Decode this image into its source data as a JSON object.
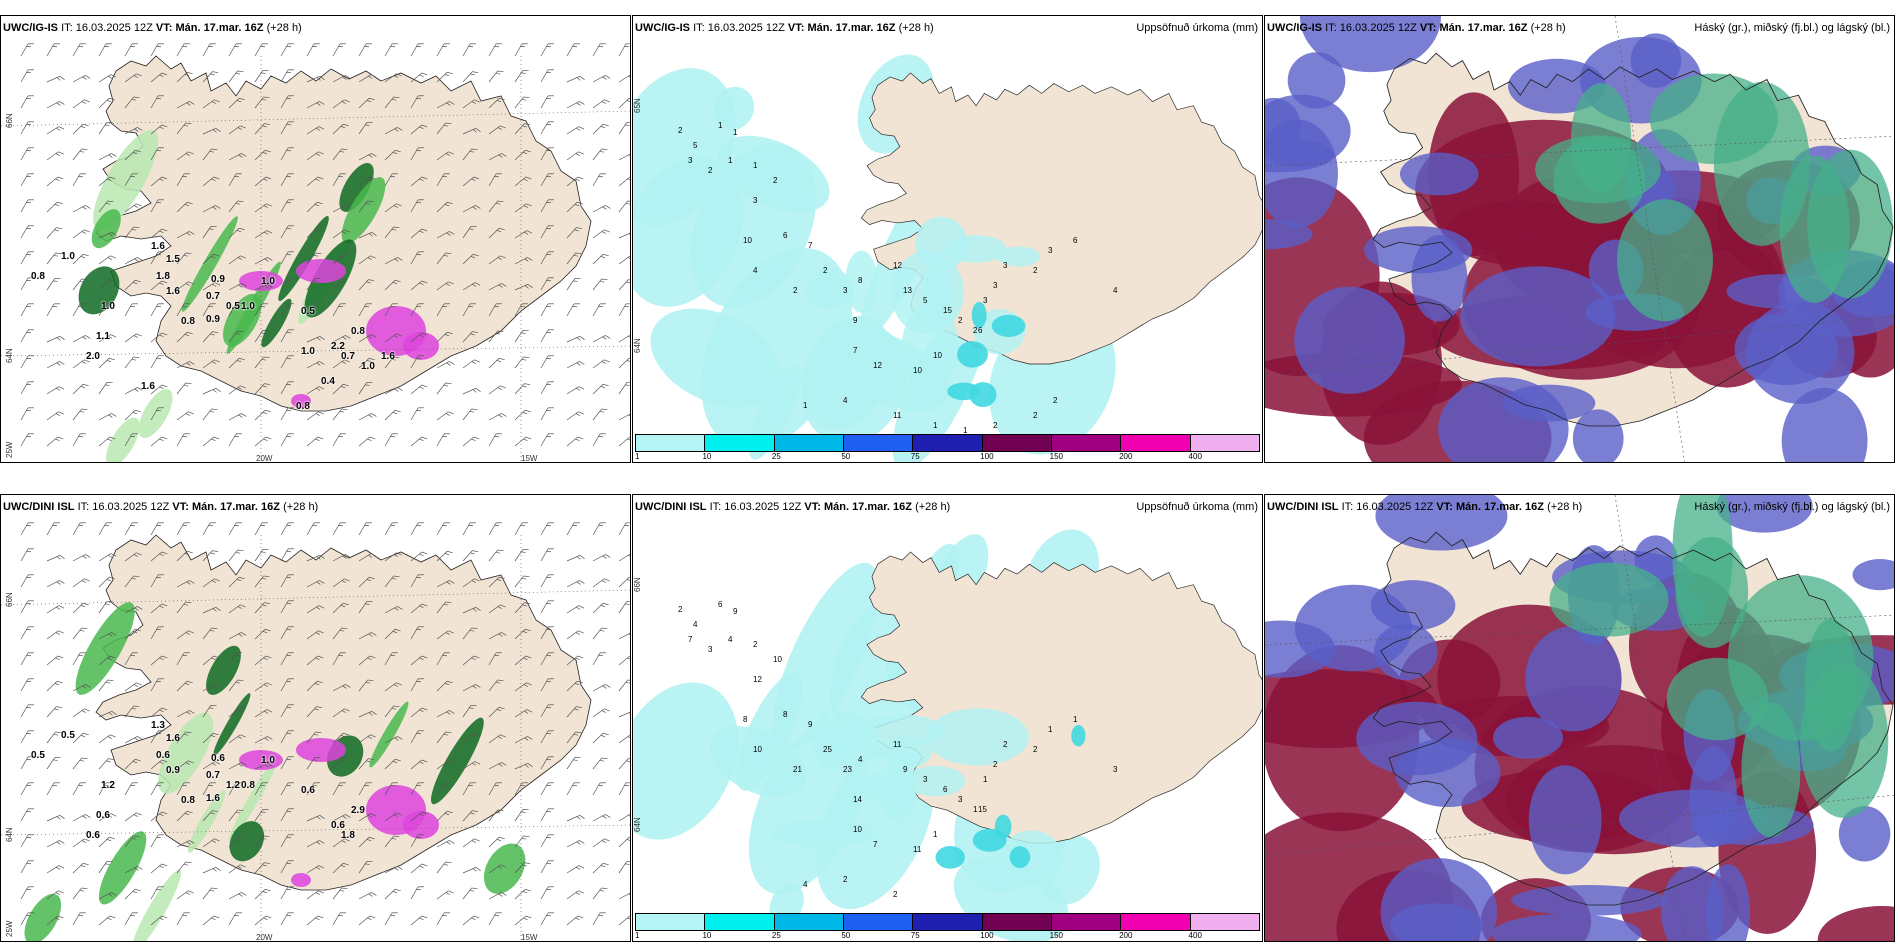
{
  "colors": {
    "land": "#f2e4d4",
    "green_light": "#b8e8b0",
    "green_mid": "#49b84e",
    "green_dark": "#0e6a22",
    "magenta": "#dd44dd",
    "cyan_light": "#b2f2f2",
    "cyan_mid": "#40d8e0",
    "blue_low": "#5a5fc8",
    "maroon_high": "#8a1238",
    "teal_mid": "#45b08a"
  },
  "precip_colorbar": {
    "labels": [
      "1",
      "10",
      "25",
      "50",
      "75",
      "100",
      "150",
      "200",
      "400"
    ],
    "colors": [
      "#b4f4f4",
      "#00f0f0",
      "#00b8e8",
      "#2060f0",
      "#2020b0",
      "#700050",
      "#a00080",
      "#f000b0",
      "#f0b0f0"
    ]
  },
  "panels": [
    {
      "id": "top-left",
      "model": "UWC/IG-IS",
      "it_label": "IT:",
      "it_value": "16.03.2025 12Z",
      "vt_label": "VT:",
      "vt_value": "Mán. 17.mar. 16Z",
      "lead": "(+28 h)",
      "right_title": "",
      "lat_labels": [
        "66N",
        "64N",
        "25W"
      ],
      "lon_labels": [
        "20W",
        "15W"
      ],
      "values": [
        "0.8",
        "1.0",
        "1.6",
        "1.5",
        "1.8",
        "1.6",
        "1.0",
        "1.1",
        "2.0",
        "0.9",
        "0.7",
        "0.5",
        "0.8",
        "0.9",
        "1.0",
        "1.0",
        "0.5",
        "2.2",
        "0.8",
        "0.7",
        "1.0",
        "1.6",
        "1.0",
        "0.4",
        "1.6",
        "0.8"
      ]
    },
    {
      "id": "top-mid",
      "model": "UWC/IG-IS",
      "it_label": "IT:",
      "it_value": "16.03.2025 12Z",
      "vt_label": "VT:",
      "vt_value": "Mán. 17.mar. 16Z",
      "lead": "(+28 h)",
      "right_title": "Uppsöfnuð úrkoma (mm)",
      "lat_labels": [
        "65N",
        "64N"
      ],
      "lon_labels": [],
      "values": [
        "2",
        "5",
        "1",
        "1",
        "3",
        "2",
        "1",
        "1",
        "2",
        "3",
        "10",
        "6",
        "7",
        "4",
        "2",
        "2",
        "3",
        "8",
        "12",
        "13",
        "9",
        "5",
        "15",
        "2",
        "6",
        "7",
        "12",
        "10",
        "10",
        "2",
        "3",
        "3",
        "3",
        "2",
        "3",
        "6",
        "4",
        "1",
        "4",
        "11",
        "1",
        "1",
        "2",
        "2",
        "2"
      ]
    },
    {
      "id": "top-right",
      "model": "UWC/IG-IS",
      "it_label": "IT:",
      "it_value": "16.03.2025 12Z",
      "vt_label": "VT:",
      "vt_value": "Mán. 17.mar. 16Z",
      "lead": "(+28 h)",
      "right_title": "Háský (gr.), miðský (fj.bl.) og lágský (bl.)",
      "lat_labels": [],
      "lon_labels": [],
      "values": []
    },
    {
      "id": "bottom-left",
      "model": "UWC/DINI ISL",
      "it_label": "IT:",
      "it_value": "16.03.2025 12Z",
      "vt_label": "VT:",
      "vt_value": "Mán. 17.mar. 16Z",
      "lead": "(+28 h)",
      "right_title": "",
      "lat_labels": [
        "66N",
        "64N",
        "25W"
      ],
      "lon_labels": [
        "20W",
        "15W"
      ],
      "values": [
        "0.5",
        "0.5",
        "1.3",
        "1.6",
        "0.6",
        "0.9",
        "1.2",
        "0.6",
        "0.6",
        "0.6",
        "0.7",
        "1.2",
        "0.8",
        "1.6",
        "0.8",
        "1.0",
        "0.6",
        "0.6",
        "2.9",
        "1.8"
      ]
    },
    {
      "id": "bottom-mid",
      "model": "UWC/DINI ISL",
      "it_label": "IT:",
      "it_value": "16.03.2025 12Z",
      "vt_label": "VT:",
      "vt_value": "Mán. 17.mar. 16Z",
      "lead": "(+28 h)",
      "right_title": "Uppsöfnuð úrkoma (mm)",
      "lat_labels": [
        "66N",
        "64N"
      ],
      "lon_labels": [],
      "values": [
        "2",
        "4",
        "6",
        "9",
        "7",
        "3",
        "4",
        "2",
        "10",
        "12",
        "8",
        "8",
        "9",
        "10",
        "21",
        "25",
        "23",
        "4",
        "11",
        "9",
        "14",
        "3",
        "6",
        "3",
        "15",
        "10",
        "7",
        "11",
        "1",
        "1",
        "1",
        "2",
        "2",
        "2",
        "1",
        "1",
        "3",
        "4",
        "2",
        "2"
      ]
    },
    {
      "id": "bottom-right",
      "model": "UWC/DINI ISL",
      "it_label": "IT:",
      "it_value": "16.03.2025 12Z",
      "vt_label": "VT:",
      "vt_value": "Mán. 17.mar. 16Z",
      "lead": "(+28 h)",
      "right_title": "Háský (gr.), miðský (fj.bl.) og lágský (bl.)",
      "lat_labels": [],
      "lon_labels": [],
      "values": []
    }
  ]
}
